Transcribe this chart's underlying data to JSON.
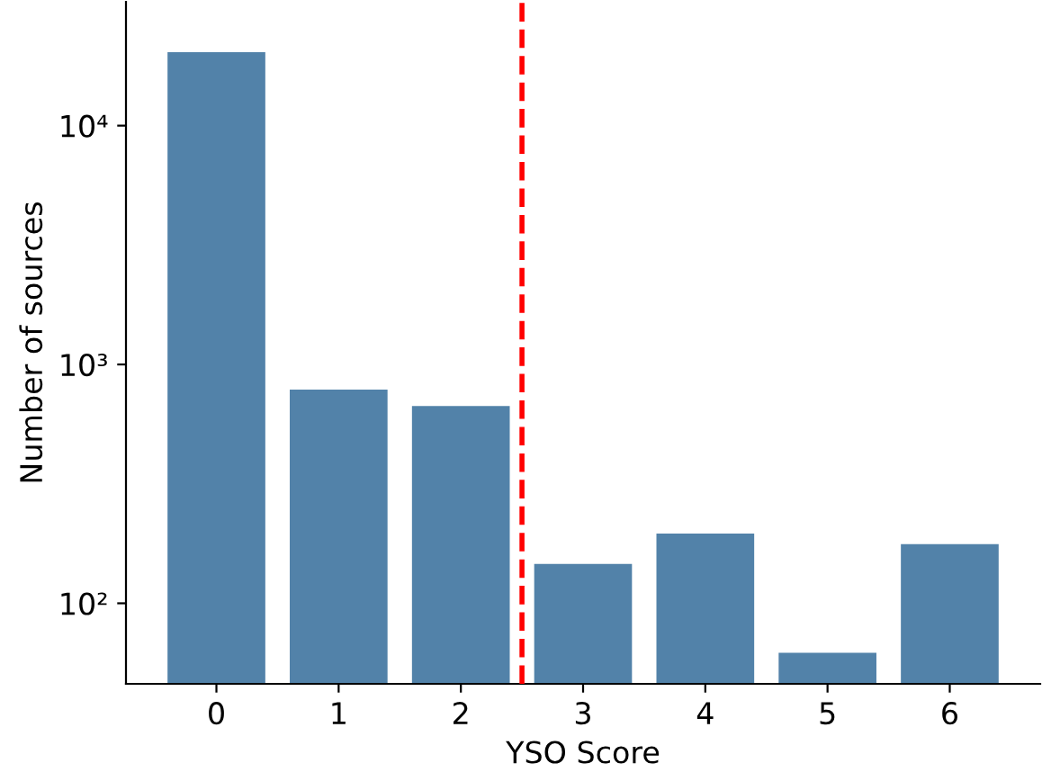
{
  "chart_data": {
    "type": "bar",
    "xlabel": "YSO Score",
    "ylabel": "Number of sources",
    "x": [
      0,
      1,
      2,
      3,
      4,
      5,
      6
    ],
    "values": [
      20300,
      785,
      670,
      146,
      196,
      62,
      177
    ],
    "color": "#5282a9",
    "log": "y",
    "xlim": [
      -0.74,
      6.74
    ],
    "xticks": [
      0,
      1,
      2,
      3,
      4,
      5,
      6
    ],
    "ylim": [
      46,
      33000
    ],
    "yticks": [
      {
        "value": 100,
        "label": "10²"
      },
      {
        "value": 1000,
        "label": "10³"
      },
      {
        "value": 10000,
        "label": "10⁴"
      }
    ],
    "ref_lines": [
      {
        "axis": "x",
        "value": 2.5,
        "color": "#ff0000",
        "line_style": "dashed"
      }
    ],
    "grid": false,
    "legend": false
  }
}
